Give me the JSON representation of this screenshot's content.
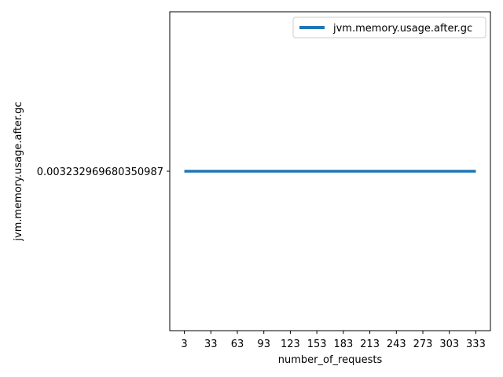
{
  "chart_data": {
    "type": "line",
    "title": "",
    "xlabel": "number_of_requests",
    "ylabel": "jvm.memory.usage.after.gc",
    "x": [
      3,
      33,
      63,
      93,
      123,
      153,
      183,
      213,
      243,
      273,
      303,
      333
    ],
    "x_tick_labels": [
      "3",
      "33",
      "63",
      "93",
      "123",
      "153",
      "183",
      "213",
      "243",
      "273",
      "303",
      "333"
    ],
    "series": [
      {
        "name": "jvm.memory.usage.after.gc",
        "color": "#1f77b4",
        "values": [
          0.003232969680350987,
          0.003232969680350987,
          0.003232969680350987,
          0.003232969680350987,
          0.003232969680350987,
          0.003232969680350987,
          0.003232969680350987,
          0.003232969680350987,
          0.003232969680350987,
          0.003232969680350987,
          0.003232969680350987,
          0.003232969680350987
        ]
      }
    ],
    "y_tick_labels": [
      "0.003232969680350987"
    ],
    "y_tick_values": [
      0.003232969680350987
    ],
    "legend": "top-right",
    "grid": false
  }
}
